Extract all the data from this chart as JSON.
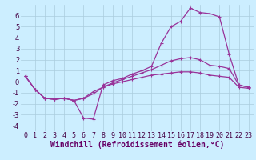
{
  "xlabel": "Windchill (Refroidissement éolien,°C)",
  "x": [
    0,
    1,
    2,
    3,
    4,
    5,
    6,
    7,
    8,
    9,
    10,
    11,
    12,
    13,
    14,
    15,
    16,
    17,
    18,
    19,
    20,
    21,
    22,
    23
  ],
  "line1": [
    0.5,
    -0.7,
    -1.5,
    -1.6,
    -1.5,
    -1.7,
    -3.3,
    -3.4,
    -0.3,
    0.1,
    0.3,
    0.7,
    1.0,
    1.4,
    3.5,
    5.0,
    5.5,
    6.7,
    6.3,
    6.2,
    5.9,
    2.5,
    -0.3,
    -0.5
  ],
  "line2": [
    0.5,
    -0.7,
    -1.5,
    -1.6,
    -1.5,
    -1.7,
    -1.5,
    -1.1,
    -0.5,
    -0.1,
    0.2,
    0.5,
    0.8,
    1.1,
    1.5,
    1.9,
    2.1,
    2.2,
    2.0,
    1.5,
    1.4,
    1.2,
    -0.3,
    -0.5
  ],
  "line3": [
    0.5,
    -0.7,
    -1.5,
    -1.6,
    -1.5,
    -1.7,
    -1.5,
    -0.9,
    -0.5,
    -0.2,
    0.0,
    0.2,
    0.4,
    0.6,
    0.7,
    0.8,
    0.9,
    0.9,
    0.8,
    0.6,
    0.5,
    0.4,
    -0.5,
    -0.6
  ],
  "line_color": "#993399",
  "bg_color": "#cceeff",
  "grid_color": "#aaccdd",
  "ylim": [
    -4.5,
    7
  ],
  "yticks": [
    -4,
    -3,
    -2,
    -1,
    0,
    1,
    2,
    3,
    4,
    5,
    6
  ],
  "xticks": [
    0,
    1,
    2,
    3,
    4,
    5,
    6,
    7,
    8,
    9,
    10,
    11,
    12,
    13,
    14,
    15,
    16,
    17,
    18,
    19,
    20,
    21,
    22,
    23
  ],
  "xlabel_fontsize": 7,
  "tick_fontsize": 6,
  "marker": "+",
  "linewidth": 0.9,
  "markersize": 3
}
